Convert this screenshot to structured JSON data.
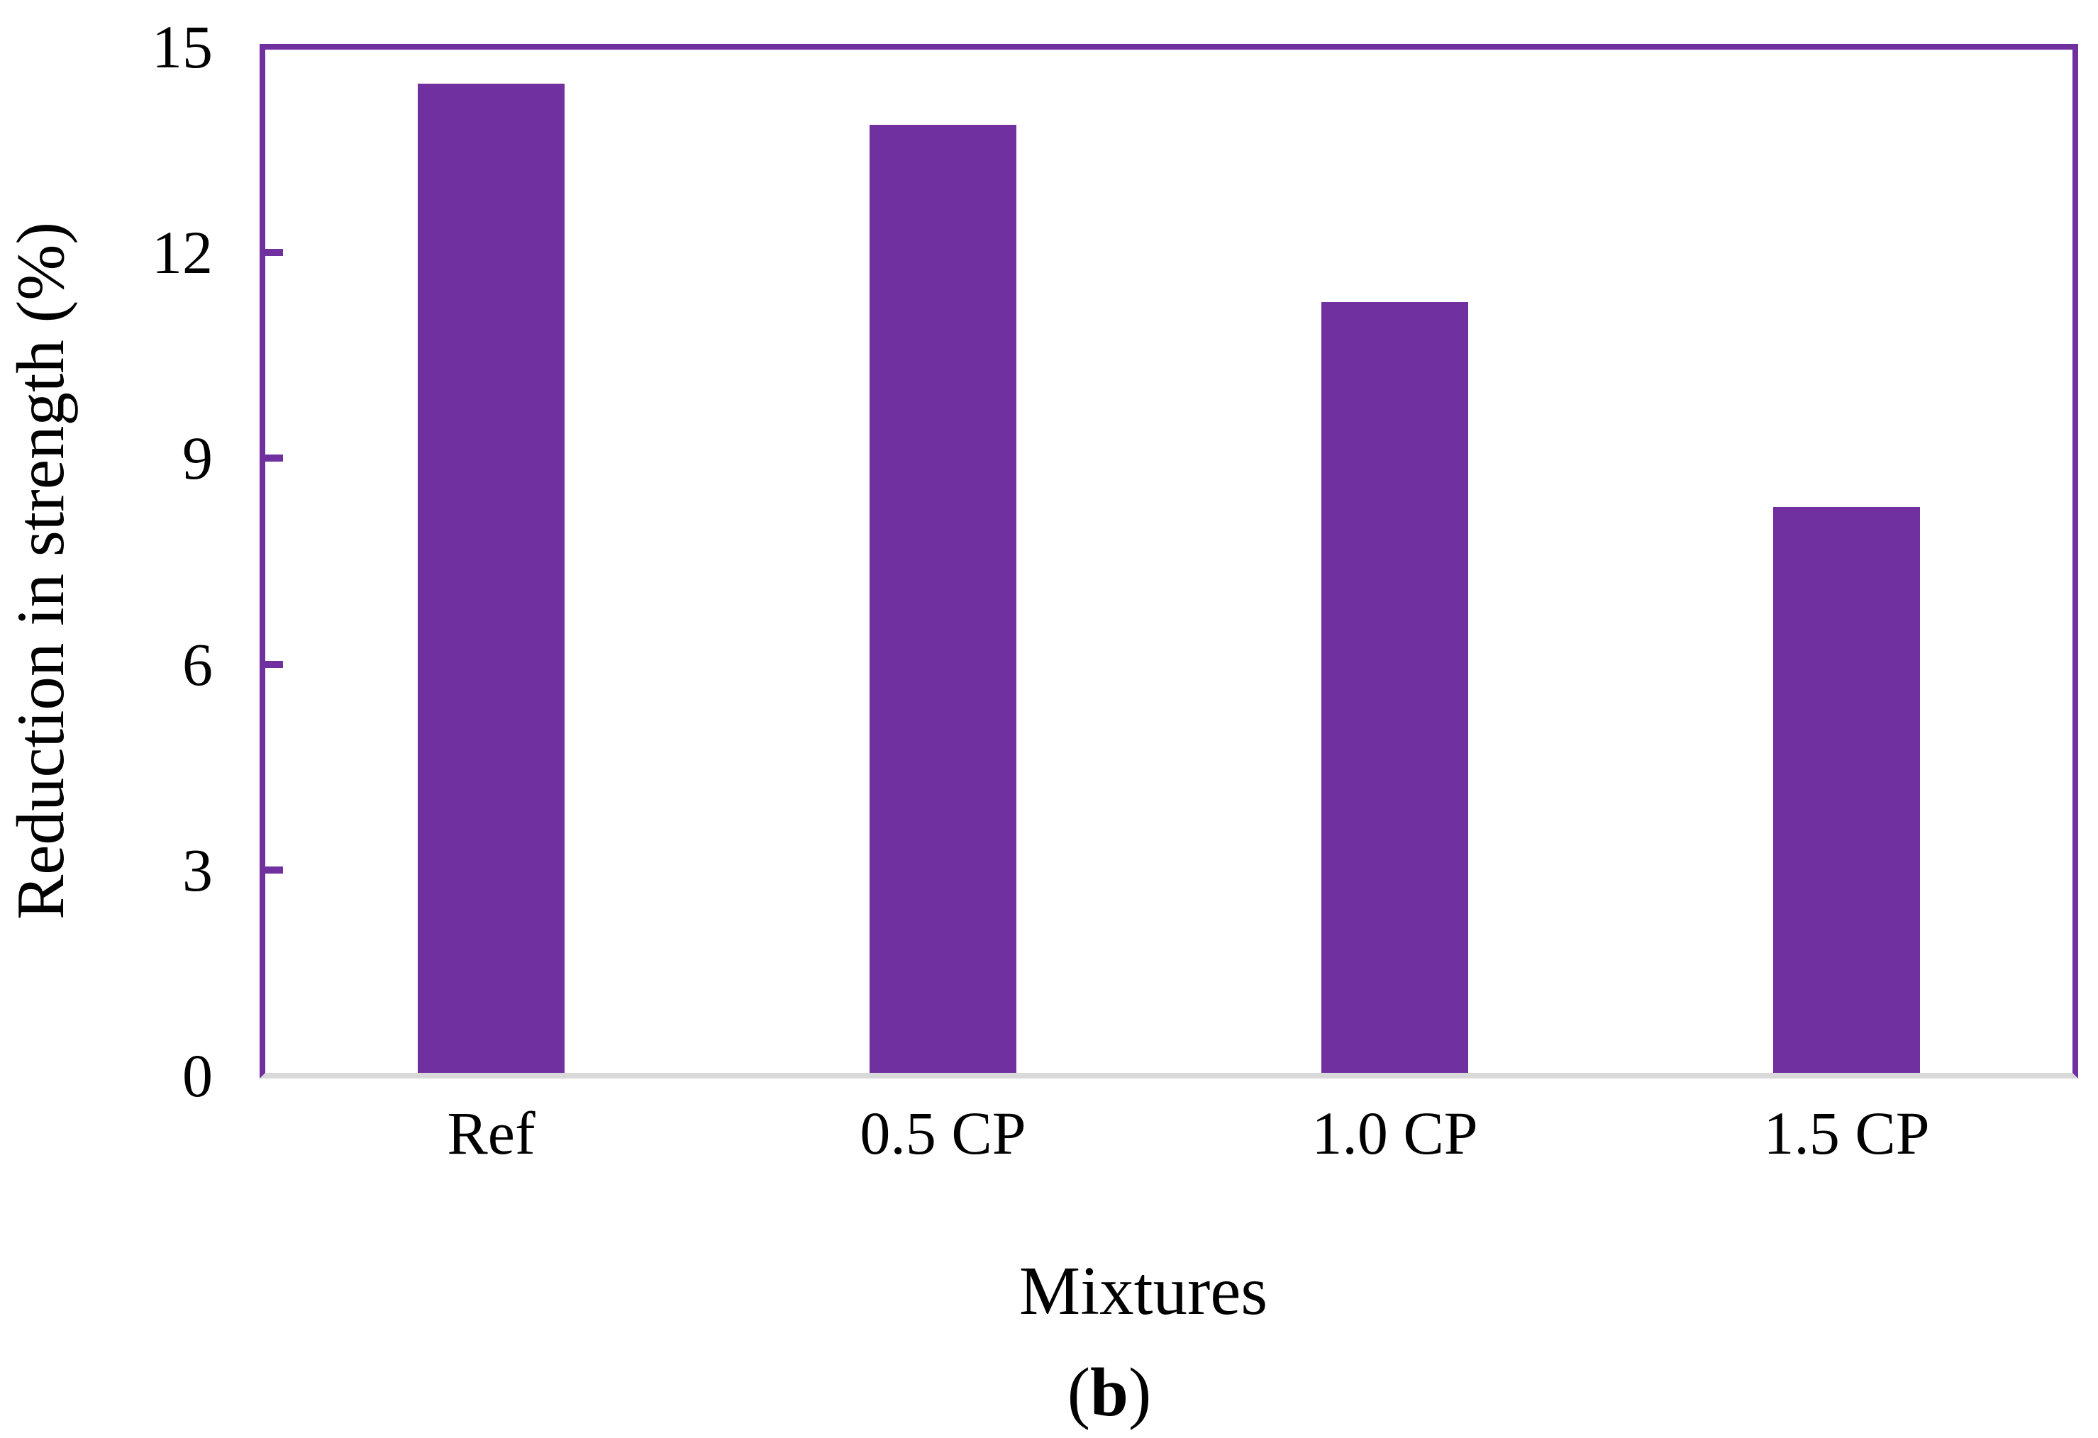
{
  "figure": {
    "caption": {
      "open": "(",
      "label": "b",
      "close": ")"
    }
  },
  "chart_data": {
    "type": "bar",
    "categories": [
      "Ref",
      "0.5 CP",
      "1.0 CP",
      "1.5 CP"
    ],
    "values": [
      14.5,
      13.9,
      11.3,
      8.3
    ],
    "title": "",
    "xlabel": "Mixtures",
    "ylabel": "Reduction in strength (%)",
    "ylim": [
      0,
      15
    ],
    "yticks": [
      0,
      3,
      6,
      9,
      12,
      15
    ],
    "grid": false,
    "legend": "none",
    "bar_color": "#7030A0",
    "axis_color": "#7030A0",
    "baseline_color": "#D9D9D9"
  }
}
